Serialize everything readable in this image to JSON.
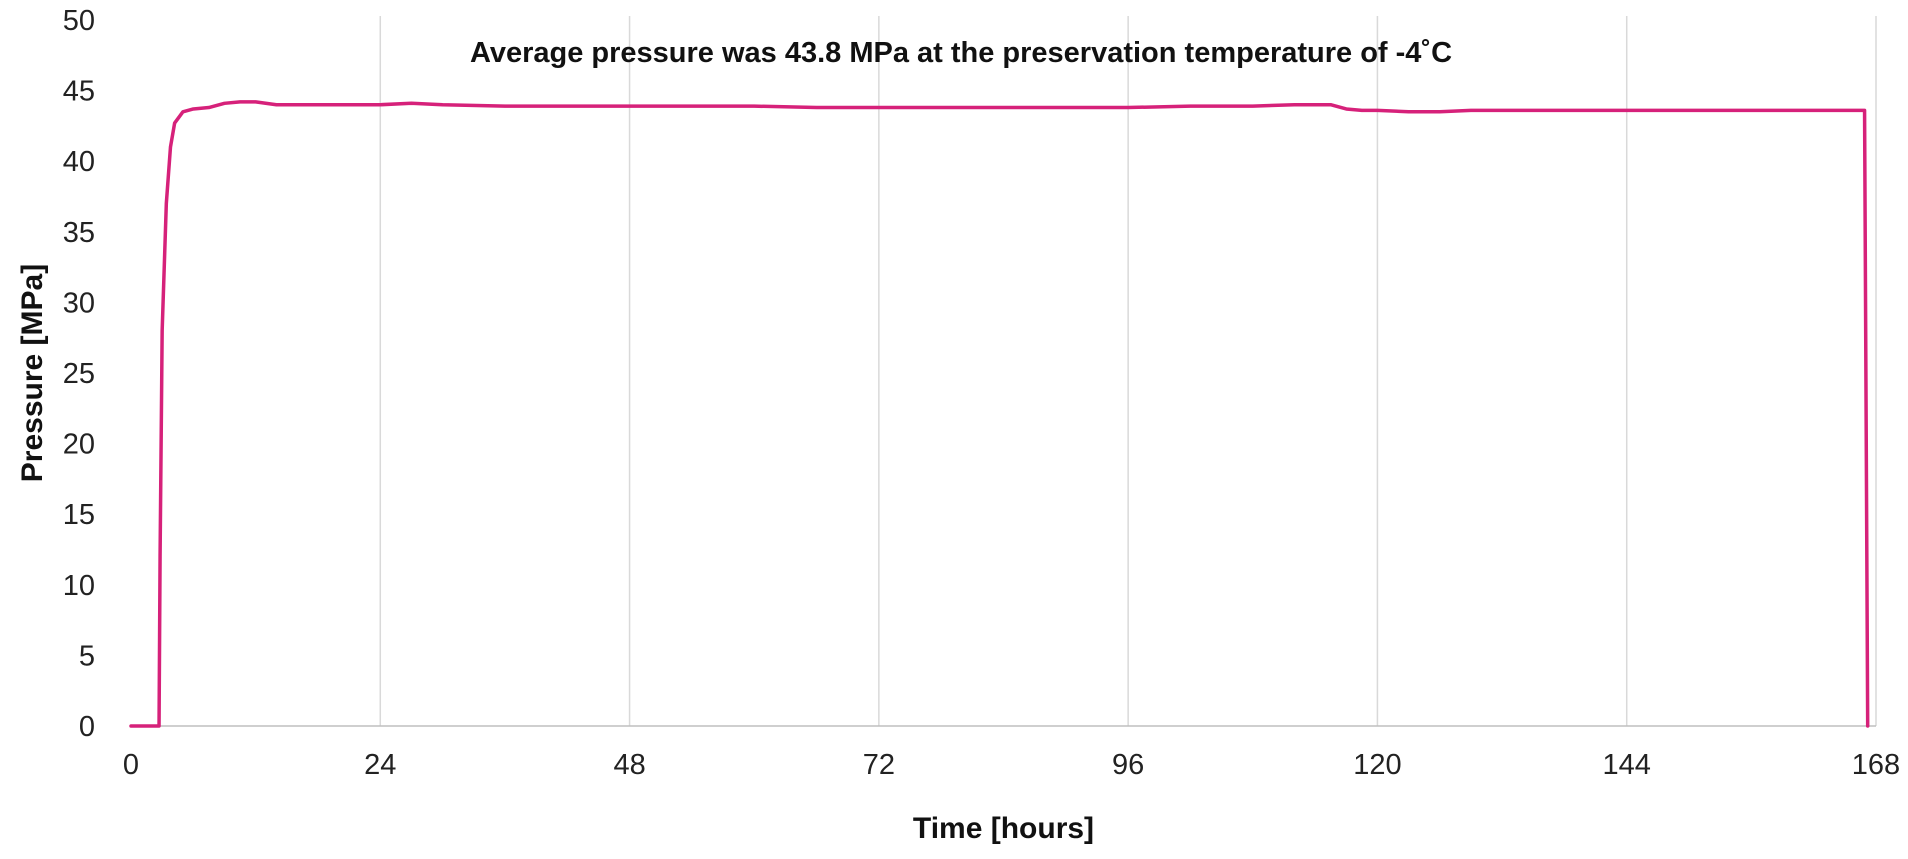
{
  "chart_data": {
    "type": "line",
    "title": "",
    "annotation": "Average pressure was 43.8 MPa at the preservation temperature of -4˚C",
    "xlabel": "Time [hours]",
    "ylabel": "Pressure [MPa]",
    "xlim": [
      0,
      168
    ],
    "ylim": [
      0,
      50
    ],
    "x_ticks": [
      0,
      24,
      48,
      72,
      96,
      120,
      144,
      168
    ],
    "y_ticks": [
      0,
      5,
      10,
      15,
      20,
      25,
      30,
      35,
      40,
      45,
      50
    ],
    "grid": {
      "vertical": true,
      "horizontal": false
    },
    "legend": "none",
    "series": [
      {
        "color": "#d6217a",
        "x": [
          0,
          2.7,
          2.8,
          3.0,
          3.4,
          3.8,
          4.2,
          5.0,
          6.0,
          7.5,
          9.0,
          10.5,
          12.0,
          14.0,
          18.0,
          24.0,
          27.0,
          30.0,
          36.0,
          42.0,
          48.0,
          54.0,
          60.0,
          66.0,
          72.0,
          78.0,
          84.0,
          90.0,
          96.0,
          102.0,
          108.0,
          112.0,
          114.0,
          115.5,
          117.0,
          118.5,
          120.0,
          123.0,
          126.0,
          129.0,
          132.0,
          138.0,
          144.0,
          150.0,
          156.0,
          162.0,
          166.0,
          166.9,
          167.2
        ],
        "y": [
          0,
          0,
          12,
          28,
          37,
          41,
          42.7,
          43.5,
          43.7,
          43.8,
          44.1,
          44.2,
          44.2,
          44.0,
          44.0,
          44.0,
          44.1,
          44.0,
          43.9,
          43.9,
          43.9,
          43.9,
          43.9,
          43.8,
          43.8,
          43.8,
          43.8,
          43.8,
          43.8,
          43.9,
          43.9,
          44.0,
          44.0,
          44.0,
          43.7,
          43.6,
          43.6,
          43.5,
          43.5,
          43.6,
          43.6,
          43.6,
          43.6,
          43.6,
          43.6,
          43.6,
          43.6,
          43.6,
          0
        ]
      }
    ]
  }
}
